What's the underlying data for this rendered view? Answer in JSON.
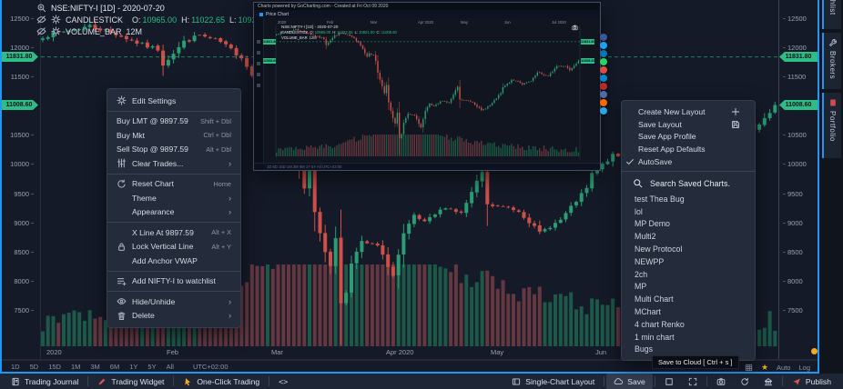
{
  "colors": {
    "accent_blue": "#2196f3",
    "green": "#2dbd85",
    "candle_up": "#2a9d72",
    "candle_down": "#cf5049",
    "vol_up": "#1e5f4b",
    "vol_down": "#6e3b43",
    "orange": "#f6a821"
  },
  "header": {
    "symbol_line": "NSE:NIFTY-I [1D] - 2020-07-20",
    "study1": {
      "name": "CANDLESTICK",
      "parts": [
        {
          "k": "O:",
          "v": "10965.00"
        },
        {
          "k": "H:",
          "v": "11022.65"
        },
        {
          "k": "L:",
          "v": "10921.00"
        },
        {
          "k": "C:",
          "v": "11008.60"
        }
      ]
    },
    "study2": {
      "name": "VOLUME_BAR",
      "value": "12M"
    }
  },
  "price_axis": {
    "tags": [
      {
        "value": "11831.80",
        "price": 11831.8,
        "dashed": true
      },
      {
        "value": "11008.60",
        "price": 11008.6,
        "dashed": false
      }
    ]
  },
  "time_axis": {
    "labels": [
      [
        "2020",
        0
      ],
      [
        "Feb",
        23
      ],
      [
        "Mar",
        43
      ],
      [
        "Apr 2020",
        65
      ],
      [
        "May",
        85
      ],
      [
        "Jun",
        105
      ]
    ]
  },
  "timeframe_bar": {
    "ranges": [
      "1D",
      "5D",
      "15D",
      "1M",
      "3M",
      "6M",
      "1Y",
      "5Y",
      "All"
    ],
    "timezone": "UTC+02:00",
    "star": "★",
    "auto_label": "Auto",
    "log_label": "Log"
  },
  "context_menu": {
    "sections": [
      [
        {
          "label": "Edit Settings",
          "icon": "gear"
        }
      ],
      [
        {
          "label": "Buy LMT @ 9897.59",
          "shortcut": "Shift + Dbl"
        },
        {
          "label": "Buy Mkt",
          "shortcut": "Ctrl + Dbl"
        },
        {
          "label": "Sell Stop @ 9897.59",
          "shortcut": "Alt + Dbl"
        },
        {
          "label": "Clear Trades...",
          "icon": "sliders",
          "submenu": true
        }
      ],
      [
        {
          "label": "Reset Chart",
          "icon": "reset",
          "shortcut": "Home"
        },
        {
          "label": "Theme",
          "indent": true,
          "submenu": true
        },
        {
          "label": "Appearance",
          "indent": true,
          "submenu": true
        }
      ],
      [
        {
          "label": "X Line At 9897.59",
          "indent": true,
          "shortcut": "Alt + X"
        },
        {
          "label": "Lock Vertical Line",
          "icon": "lock",
          "shortcut": "Alt + Y"
        },
        {
          "label": "Add Anchor VWAP",
          "indent": true
        }
      ],
      [
        {
          "label": "Add NIFTY-I to watchlist",
          "icon": "listplus"
        }
      ],
      [
        {
          "label": "Hide/Unhide",
          "icon": "eye",
          "submenu": true
        },
        {
          "label": "Delete",
          "icon": "trash",
          "submenu": true
        }
      ]
    ]
  },
  "layout_menu": {
    "items": [
      {
        "label": "Create New Layout",
        "right_icon": "plus"
      },
      {
        "label": "Save Layout",
        "right_icon": "floppy"
      },
      {
        "label": "Save App Profile"
      },
      {
        "label": "Reset App Defaults"
      },
      {
        "label": "AutoSave",
        "checked": true
      }
    ]
  },
  "saved_charts": {
    "search_label": "Search Saved Charts.",
    "items": [
      "test Thea Bug",
      "lol",
      "MP Demo",
      "Multi2",
      "New Protocol",
      "NEWPP",
      "2ch",
      "MP",
      "Multi Chart",
      "MChart",
      "4 chart Renko",
      "1 min chart",
      "Bugs"
    ]
  },
  "tooltip": {
    "text": "Save to Cloud [ Ctrl + s ]"
  },
  "status_bar": {
    "left": [
      {
        "label": "Trading Journal",
        "icon": "journal"
      },
      {
        "divider": true
      },
      {
        "label": "Trading Widget",
        "icon": "pen",
        "icon_color": "#e0564e",
        "fill": true
      },
      {
        "divider": true
      },
      {
        "label": "One-Click Trading",
        "icon": "hand",
        "icon_color": "#f6a821",
        "fill": true
      },
      {
        "divider": true
      },
      {
        "label": "<>"
      }
    ],
    "right": [
      {
        "label": "Single-Chart Layout",
        "icon": "layout"
      },
      {
        "divider": true
      },
      {
        "label": "Save",
        "icon": "cloud",
        "highlight": true
      },
      {
        "divider": true
      },
      {
        "icon": "square"
      },
      {
        "icon": "expand"
      },
      {
        "divider": true
      },
      {
        "icon": "camera"
      },
      {
        "icon": "refresh"
      },
      {
        "icon": "columns"
      },
      {
        "divider": true
      },
      {
        "label": "Publish",
        "icon": "plane",
        "icon_color": "#e0564e",
        "fill": true
      }
    ]
  },
  "side_tabs": [
    {
      "label": "Watchlist"
    },
    {
      "label": "Brokers",
      "icon": "wrench"
    },
    {
      "label": "Portfolio",
      "icon": "book",
      "icon_color": "#d24b4b",
      "fill": true
    }
  ],
  "popup": {
    "title": "Charts powered by GoCharting.com - Created at Fri Oct 09 2020",
    "tab": "Price Chart",
    "x_labels": [
      [
        "2020",
        0
      ],
      [
        "Feb",
        23
      ],
      [
        "Mar",
        43
      ],
      [
        "Apr 2020",
        65
      ],
      [
        "May",
        85
      ],
      [
        "Jun",
        105
      ],
      [
        "Jul 2020",
        127
      ]
    ],
    "footer": "1D  5D  15D  1M  3M  6M  1Y  5Y  All      UTC+02:00",
    "share": [
      {
        "name": "facebook",
        "color": "#3b5998"
      },
      {
        "name": "twitter",
        "color": "#1da1f2"
      },
      {
        "name": "linkedin",
        "color": "#0077b5"
      },
      {
        "name": "whatsapp",
        "color": "#25d366"
      },
      {
        "name": "pinterest",
        "color": "#e14c42"
      },
      {
        "name": "telegram",
        "color": "#0088cc"
      },
      {
        "name": "quora",
        "color": "#b92b27"
      },
      {
        "name": "vk",
        "color": "#4a6ea9"
      },
      {
        "name": "reddit",
        "color": "#ff6a00"
      },
      {
        "name": "mail",
        "color": "#29a9eb"
      }
    ]
  },
  "chart_data": {
    "type": "candlestick",
    "symbol": "NSE:NIFTY-I",
    "interval": "1D",
    "last_date": "2020-07-20",
    "ohlc_last": {
      "open": 10965.0,
      "high": 11022.65,
      "low": 10921.0,
      "close": 11008.6
    },
    "volume_label": "12M",
    "price_level_line": 11831.8,
    "last_price": 11008.6,
    "y_ticks": [
      12500,
      12000,
      11500,
      10500,
      10000,
      9500,
      9000,
      8500,
      8000,
      7500
    ],
    "x_tick_labels": [
      "2020",
      "Feb",
      "Mar",
      "Apr 2020",
      "May",
      "Jun"
    ],
    "n_days": 141,
    "close_keypoints": [
      [
        0,
        12182
      ],
      [
        9,
        12362
      ],
      [
        14,
        12224
      ],
      [
        19,
        12035
      ],
      [
        22,
        11962
      ],
      [
        23,
        11708
      ],
      [
        27,
        12089
      ],
      [
        30,
        12201
      ],
      [
        34,
        12080
      ],
      [
        38,
        11829
      ],
      [
        42,
        11201
      ],
      [
        43,
        11303
      ],
      [
        45,
        11251
      ],
      [
        46,
        10989
      ],
      [
        47,
        10451
      ],
      [
        50,
        9590
      ],
      [
        51,
        9955
      ],
      [
        52,
        9197
      ],
      [
        54,
        8469
      ],
      [
        55,
        8263
      ],
      [
        56,
        8745
      ],
      [
        57,
        7610
      ],
      [
        58,
        7801
      ],
      [
        59,
        8317
      ],
      [
        61,
        8660
      ],
      [
        64,
        8598
      ],
      [
        67,
        8084
      ],
      [
        69,
        8792
      ],
      [
        71,
        9112
      ],
      [
        73,
        8994
      ],
      [
        77,
        9267
      ],
      [
        80,
        9154
      ],
      [
        84,
        9860
      ],
      [
        85,
        9293
      ],
      [
        89,
        9252
      ],
      [
        91,
        9197
      ],
      [
        95,
        8823
      ],
      [
        99,
        9039
      ],
      [
        104,
        9580
      ],
      [
        105,
        9826
      ],
      [
        109,
        10142
      ],
      [
        112,
        10116
      ],
      [
        114,
        9972
      ],
      [
        118,
        10092
      ],
      [
        121,
        10471
      ],
      [
        124,
        10383
      ],
      [
        126,
        10312
      ],
      [
        127,
        10430
      ],
      [
        130,
        10764
      ],
      [
        134,
        10768
      ],
      [
        136,
        10607
      ],
      [
        139,
        10902
      ],
      [
        140,
        11008.6
      ]
    ]
  }
}
